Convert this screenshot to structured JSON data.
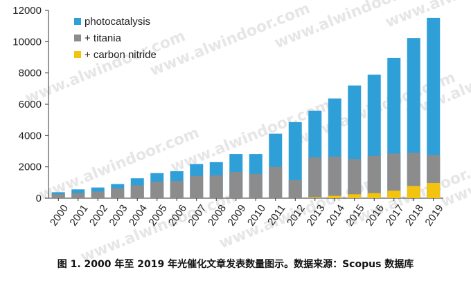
{
  "chart_data": {
    "type": "bar",
    "categories": [
      "2000",
      "2001",
      "2002",
      "2003",
      "2004",
      "2005",
      "2006",
      "2007",
      "2008",
      "2009",
      "2010",
      "2011",
      "2012",
      "2013",
      "2014",
      "2015",
      "2016",
      "2017",
      "2018",
      "2019"
    ],
    "series": [
      {
        "name": "photocatalysis",
        "color": "#2f9fd8",
        "values": [
          380,
          560,
          680,
          900,
          1270,
          1600,
          1720,
          2180,
          2300,
          2820,
          2820,
          4120,
          4860,
          5580,
          6370,
          7200,
          7890,
          8960,
          10230,
          11520
        ]
      },
      {
        "name": "+ titania",
        "color": "#8c8c8c",
        "values": [
          250,
          320,
          420,
          620,
          820,
          1050,
          1100,
          1420,
          1450,
          1680,
          1550,
          2000,
          1150,
          2600,
          2650,
          2500,
          2700,
          2850,
          2900,
          2750
        ]
      },
      {
        "name": "+ carbon nitride",
        "color": "#f2c40f",
        "values": [
          0,
          0,
          0,
          0,
          0,
          0,
          0,
          0,
          0,
          0,
          0,
          0,
          0,
          50,
          150,
          250,
          320,
          480,
          780,
          970
        ]
      }
    ],
    "ylim": [
      0,
      12000
    ],
    "yticks": [
      0,
      2000,
      4000,
      6000,
      8000,
      10000,
      12000
    ],
    "legend_position": "top-left",
    "grid": false
  },
  "watermark_text": "www.alwindoor.com",
  "caption": "图 1. 2000 年至 2019 年光催化文章发表数量图示。数据来源：Scopus 数据库"
}
